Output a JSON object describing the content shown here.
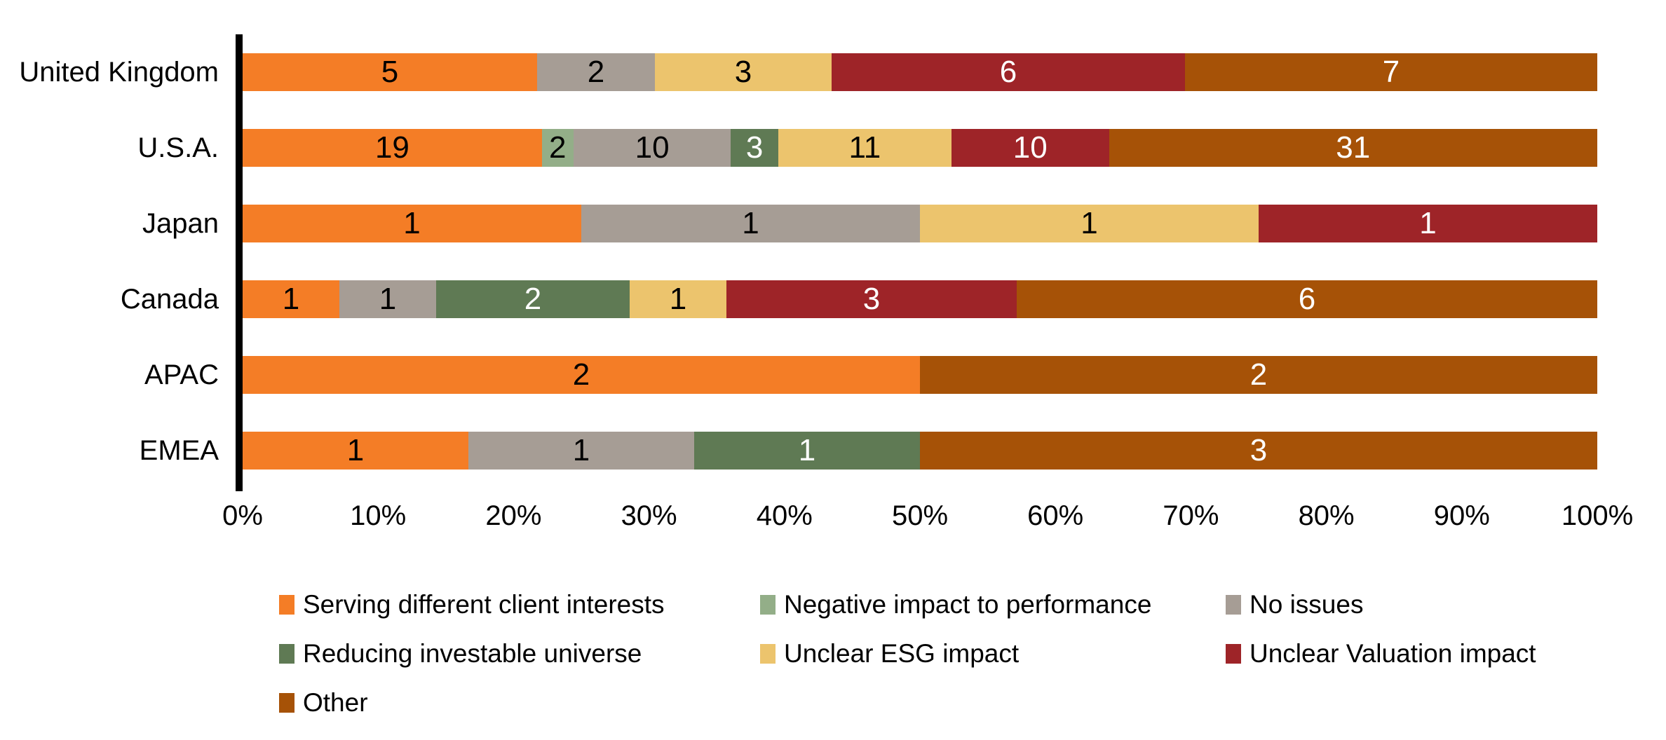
{
  "chart_data": {
    "type": "bar",
    "orientation": "horizontal",
    "stacked": true,
    "percent_axis": true,
    "title": "",
    "xlabel": "",
    "ylabel": "",
    "grid": false,
    "legend_position": "bottom",
    "categories": [
      "United Kingdom",
      "U.S.A.",
      "Japan",
      "Canada",
      "APAC",
      "EMEA"
    ],
    "series": [
      {
        "name": "Serving different client interests",
        "color": "#F47D26",
        "label_text_color": "#000000",
        "values": [
          5,
          19,
          1,
          1,
          2,
          1
        ]
      },
      {
        "name": "Negative impact to performance",
        "color": "#93AE88",
        "label_text_color": "#000000",
        "values": [
          0,
          2,
          0,
          0,
          0,
          0
        ]
      },
      {
        "name": "No issues",
        "color": "#A69D95",
        "label_text_color": "#000000",
        "values": [
          2,
          10,
          1,
          1,
          0,
          1
        ]
      },
      {
        "name": "Reducing investable universe",
        "color": "#5F7A54",
        "label_text_color": "#FFFFFF",
        "values": [
          0,
          3,
          0,
          2,
          0,
          1
        ]
      },
      {
        "name": "Unclear ESG impact",
        "color": "#ECC46D",
        "label_text_color": "#000000",
        "values": [
          3,
          11,
          1,
          1,
          0,
          0
        ]
      },
      {
        "name": "Unclear Valuation impact",
        "color": "#9E2428",
        "label_text_color": "#FFFFFF",
        "values": [
          6,
          10,
          1,
          3,
          0,
          0
        ]
      },
      {
        "name": "Other",
        "color": "#A65207",
        "label_text_color": "#FFFFFF",
        "values": [
          7,
          31,
          0,
          6,
          2,
          3
        ]
      }
    ],
    "x_axis": {
      "min": 0,
      "max": 100,
      "ticks": [
        "0%",
        "10%",
        "20%",
        "30%",
        "40%",
        "50%",
        "60%",
        "70%",
        "80%",
        "90%",
        "100%"
      ]
    },
    "axis_line_color": "#000000"
  }
}
